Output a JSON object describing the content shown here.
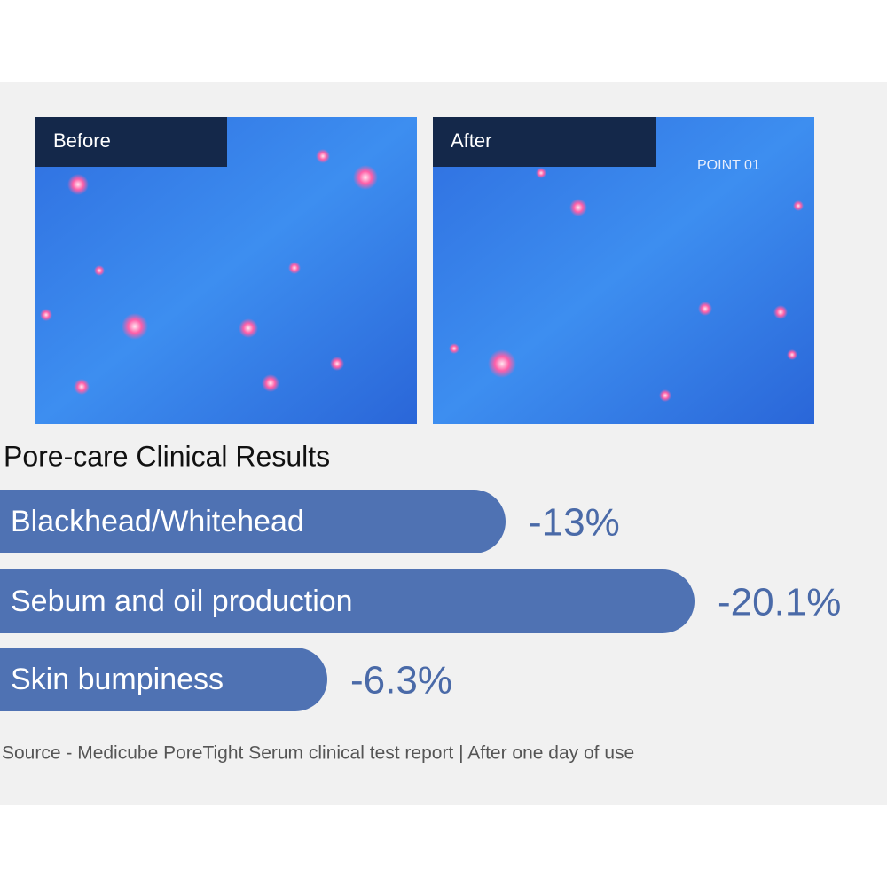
{
  "chart_data": {
    "type": "bar",
    "orientation": "horizontal",
    "title": "Pore-care Clinical Results",
    "images": [
      {
        "label": "Before"
      },
      {
        "label": "After",
        "annotation": "POINT 01"
      }
    ],
    "categories": [
      "Blackhead/Whitehead",
      "Sebum and oil production",
      "Skin bumpiness"
    ],
    "values": [
      -13,
      -20.1,
      -6.3
    ],
    "value_labels": [
      "-13%",
      "-20.1%",
      "-6.3%"
    ],
    "color": "#4f72b3",
    "source": "Source - Medicube PoreTight Serum clinical test report | After one day of use"
  }
}
